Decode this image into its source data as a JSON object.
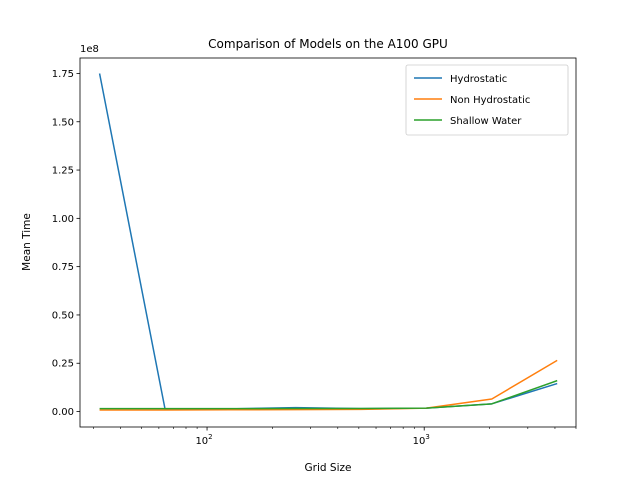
{
  "chart_data": {
    "type": "line",
    "title": "Comparison of Models on the A100 GPU",
    "xlabel": "Grid Size",
    "ylabel": "Mean Time",
    "x_scale": "log",
    "xlim": [
      26,
      5000
    ],
    "ylim": [
      -8000000,
      183000000
    ],
    "y_offset_label": "1e8",
    "y_tick_values": [
      0,
      25000000,
      50000000,
      75000000,
      100000000,
      125000000,
      150000000,
      175000000
    ],
    "y_tick_labels": [
      "0.00",
      "0.25",
      "0.50",
      "0.75",
      "1.00",
      "1.25",
      "1.50",
      "1.75"
    ],
    "x_major_ticks": [
      100,
      1000
    ],
    "x_major_labels": [
      "10",
      "10"
    ],
    "x_major_exponents": [
      "2",
      "3"
    ],
    "grid": false,
    "legend_position": "top-right",
    "x": [
      32,
      64,
      128,
      256,
      512,
      1024,
      2048,
      4096
    ],
    "series": [
      {
        "name": "Hydrostatic",
        "color": "#1f77b4",
        "values": [
          175000000,
          1500000,
          1400000,
          2000000,
          1500000,
          1800000,
          4000000,
          14500000
        ]
      },
      {
        "name": "Non Hydrostatic",
        "color": "#ff7f0e",
        "values": [
          800000,
          800000,
          900000,
          1000000,
          1100000,
          1800000,
          6500000,
          26500000
        ]
      },
      {
        "name": "Shallow Water",
        "color": "#2ca02c",
        "values": [
          1500000,
          1500000,
          1500000,
          1600000,
          1600000,
          1800000,
          4000000,
          16000000
        ]
      }
    ]
  }
}
